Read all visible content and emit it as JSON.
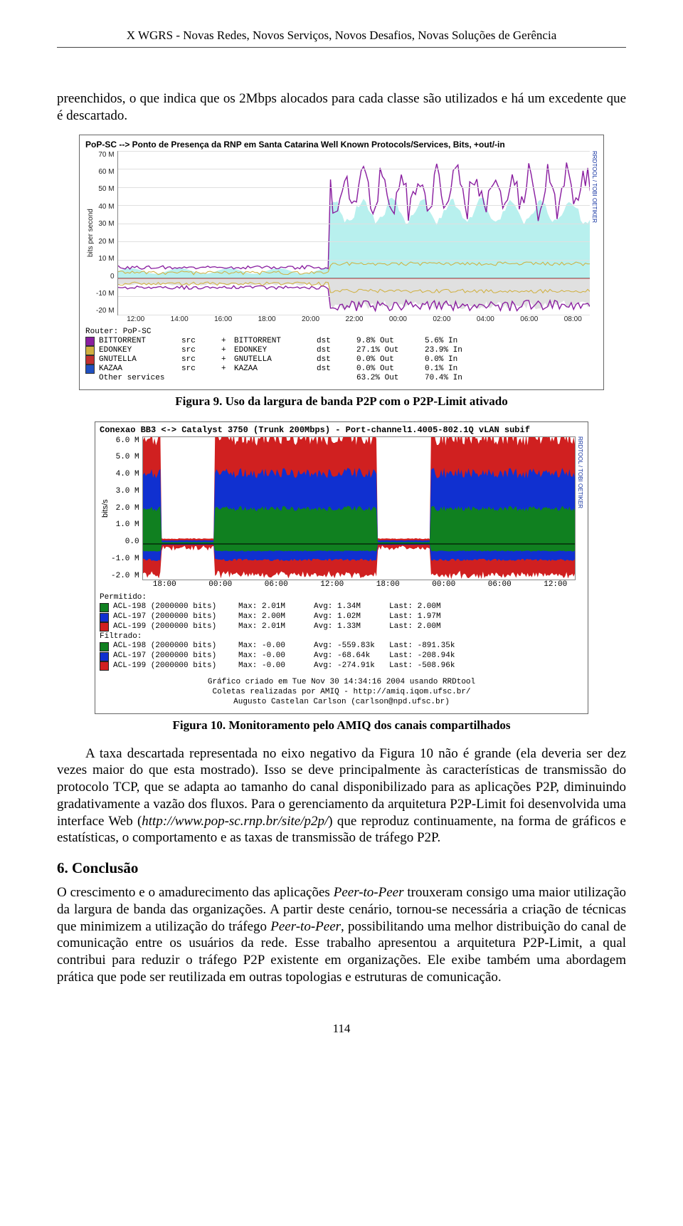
{
  "header": {
    "running_head": "X WGRS - Novas Redes, Novos Serviços, Novos Desafios, Novas Soluções de Gerência"
  },
  "paragraphs": {
    "p1": "preenchidos, o que indica que os 2Mbps alocados para cada classe são utilizados e há um excedente que é descartado.",
    "fig9_caption": "Figura 9. Uso da largura de banda P2P com o P2P-Limit ativado",
    "fig10_caption": "Figura 10. Monitoramento pelo AMIQ dos canais compartilhados",
    "p2a": "A taxa descartada representada no eixo negativo da Figura 10 não é grande (ela deveria ser dez vezes maior do que esta mostrado). Isso se deve principalmente às características de transmissão do protocolo TCP, que se adapta ao tamanho do canal disponibilizado para as aplicações P2P, diminuindo gradativamente a vazão dos fluxos. Para o gerenciamento da arquitetura P2P-Limit foi desenvolvida uma interface Web (",
    "p2_url": "http://www.pop-sc.rnp.br/site/p2p/",
    "p2b": ") que reproduz continuamente, na forma de gráficos e estatísticas,  o comportamento e as taxas de transmissão de tráfego P2P.",
    "section6_title": "6. Conclusão",
    "p3a": "O crescimento e o amadurecimento das aplicações ",
    "p3_i1": "Peer-to-Peer",
    "p3b": " trouxeram consigo uma maior utilização da largura de banda das organizações. A partir deste cenário, tornou-se necessária a criação de técnicas que minimizem a utilização do tráfego ",
    "p3_i2": "Peer-to-Peer",
    "p3c": ", possibilitando uma melhor distribuição do canal de comunicação entre os usuários da rede. Esse trabalho apresentou a arquitetura P2P-Limit, a qual contribui para reduzir o tráfego P2P existente em organizações. Ele exibe também uma abordagem prática que pode ser reutilizada em outras topologias e estruturas de comunicação.",
    "page_number": "114"
  },
  "chart1": {
    "type": "line-area",
    "title": "PoP-SC --> Ponto de Presença da RNP em Santa Catarina Well Known Protocols/Services, Bits, +out/-in",
    "ylabel": "bits per second",
    "right_label": "RRDTOOL / TOBI OETIKER",
    "background_color": "#ffffff",
    "grid_color": "#e0e0e0",
    "colors": {
      "bittorrent": "#8a1fa0",
      "edonkey": "#d0b040",
      "gnutella": "#c03030",
      "kazaa": "#2050c0",
      "other": "#b8f0ee",
      "area_out": "#b8f0ee",
      "area_in": "#e0e0e0"
    },
    "ylim": [
      -20,
      70
    ],
    "yticks": [
      "70 M",
      "60 M",
      "50 M",
      "40 M",
      "30 M",
      "20 M",
      "10 M",
      "0",
      "-10 M",
      "-20 M"
    ],
    "xticks": [
      "12:00",
      "14:00",
      "16:00",
      "18:00",
      "20:00",
      "22:00",
      "00:00",
      "02:00",
      "04:00",
      "06:00",
      "08:00"
    ],
    "legend_router": "Router: PoP-SC",
    "legend_rows": [
      {
        "color": "#8a1fa0",
        "name": "BITTORRENT",
        "c2": "src",
        "c3": "+",
        "name2": "BITTORRENT",
        "c5": "dst",
        "out": "9.8% Out",
        "in": "5.6% In"
      },
      {
        "color": "#d0b040",
        "name": "EDONKEY",
        "c2": "src",
        "c3": "+",
        "name2": "EDONKEY",
        "c5": "dst",
        "out": "27.1% Out",
        "in": "23.9% In"
      },
      {
        "color": "#c03030",
        "name": "GNUTELLA",
        "c2": "src",
        "c3": "+",
        "name2": "GNUTELLA",
        "c5": "dst",
        "out": "0.0% Out",
        "in": "0.0% In"
      },
      {
        "color": "#2050c0",
        "name": "KAZAA",
        "c2": "src",
        "c3": "+",
        "name2": "KAZAA",
        "c5": "dst",
        "out": "0.0% Out",
        "in": "0.1% In"
      }
    ],
    "legend_other": "Other services",
    "legend_other_out": "63.2% Out",
    "legend_other_in": "70.4% In"
  },
  "chart2": {
    "type": "stacked-area",
    "title": "Conexao BB3 <-> Catalyst 3750 (Trunk 200Mbps) - Port-channel1.4005-802.1Q vLAN subif",
    "ylabel": "bits/s",
    "right_label": "RRDTOOL / TOBI OETIKER",
    "background_color": "#ffffff",
    "colors": {
      "acl198": "#108020",
      "acl197": "#1030d0",
      "acl199": "#d02020"
    },
    "ylim": [
      -2.0,
      6.0
    ],
    "yticks": [
      "6.0 M",
      "5.0 M",
      "4.0 M",
      "3.0 M",
      "2.0 M",
      "1.0 M",
      "0.0",
      "-1.0 M",
      "-2.0 M"
    ],
    "xticks": [
      "18:00",
      "00:00",
      "06:00",
      "12:00",
      "18:00",
      "00:00",
      "06:00",
      "12:00"
    ],
    "legend_perm_hdr": "Permitido:",
    "legend_filt_hdr": "Filtrado:",
    "perm_rows": [
      {
        "color": "#108020",
        "label": "ACL-198 (2000000 bits)",
        "max": "Max:  2.01M",
        "avg": "Avg:  1.34M",
        "last": "Last:  2.00M"
      },
      {
        "color": "#1030d0",
        "label": "ACL-197 (2000000 bits)",
        "max": "Max:  2.00M",
        "avg": "Avg:  1.02M",
        "last": "Last:  1.97M"
      },
      {
        "color": "#d02020",
        "label": "ACL-199 (2000000 bits)",
        "max": "Max:  2.01M",
        "avg": "Avg:  1.33M",
        "last": "Last:  2.00M"
      }
    ],
    "filt_rows": [
      {
        "color": "#108020",
        "label": "ACL-198 (2000000 bits)",
        "max": "Max:  -0.00",
        "avg": "Avg: -559.83k",
        "last": "Last: -891.35k"
      },
      {
        "color": "#1030d0",
        "label": "ACL-197 (2000000 bits)",
        "max": "Max:  -0.00",
        "avg": "Avg:  -68.64k",
        "last": "Last: -208.94k"
      },
      {
        "color": "#d02020",
        "label": "ACL-199 (2000000 bits)",
        "max": "Max:  -0.00",
        "avg": "Avg: -274.91k",
        "last": "Last: -508.96k"
      }
    ],
    "footer1": "Gráfico criado em Tue Nov 30 14:34:16 2004 usando RRDtool",
    "footer2": "Coletas realizadas por AMIQ - http://amiq.iqom.ufsc.br/",
    "footer3": "Augusto Castelan Carlson (carlson@npd.ufsc.br)"
  }
}
